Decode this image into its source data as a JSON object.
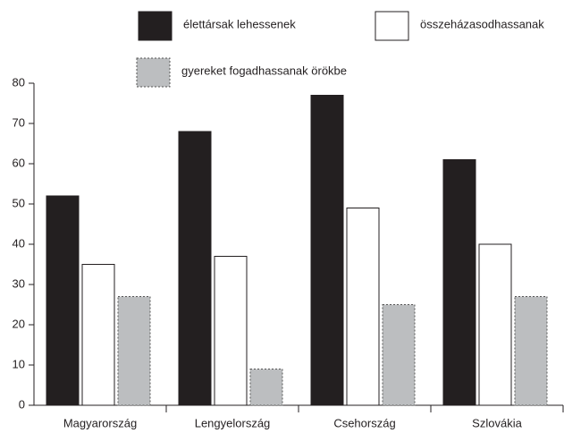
{
  "chart_data": {
    "type": "bar",
    "categories": [
      "Magyarország",
      "Lengyelország",
      "Csehország",
      "Szlovákia"
    ],
    "series": [
      {
        "name": "élettársak lehessenek",
        "color": "#231f20",
        "values": [
          52,
          68,
          77,
          61
        ]
      },
      {
        "name": "összeházasodhassanak",
        "color": "#ffffff",
        "values": [
          35,
          37,
          49,
          40
        ]
      },
      {
        "name": "gyereket fogadhassanak örökbe",
        "color": "#bcbec0",
        "values": [
          27,
          9,
          25,
          27
        ]
      }
    ],
    "ylim": [
      0,
      80
    ],
    "yticks": [
      0,
      10,
      20,
      30,
      40,
      50,
      60,
      70,
      80
    ],
    "legend": "top",
    "grid": false
  }
}
